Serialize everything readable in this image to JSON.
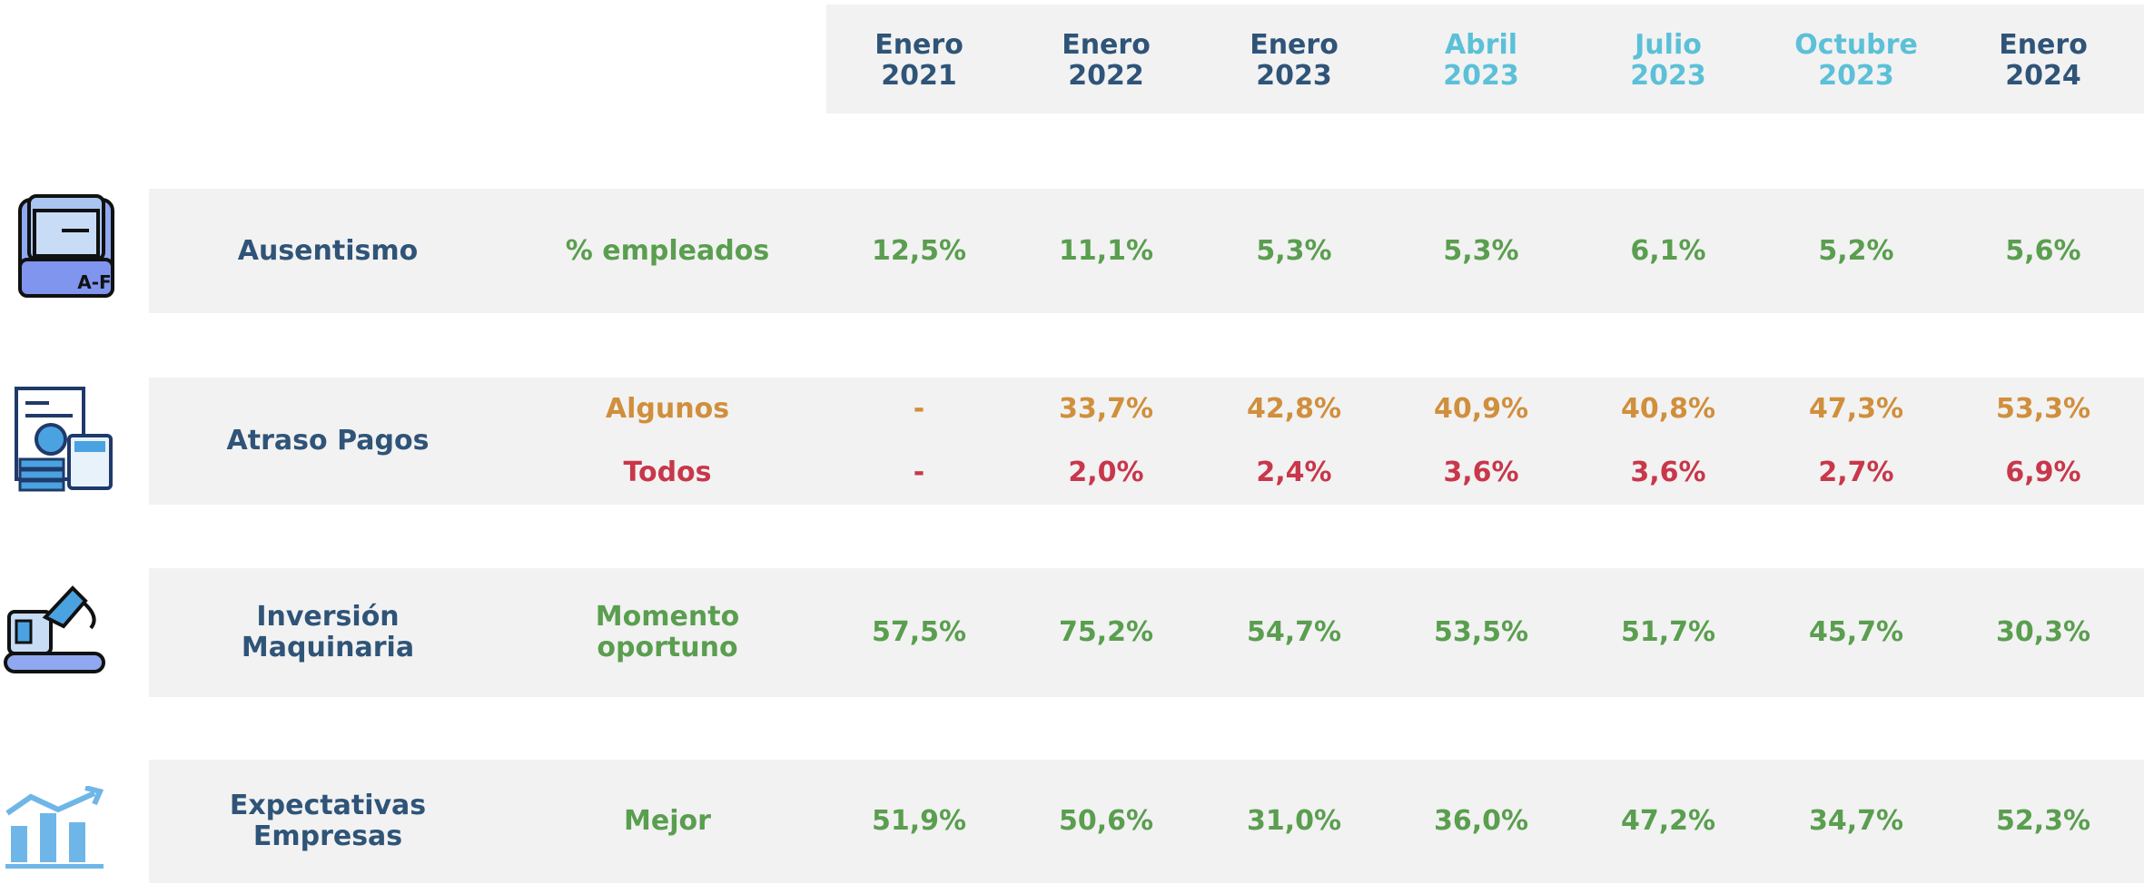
{
  "header": {
    "columns": [
      {
        "month": "Enero",
        "year": "2021",
        "color": "#2f5478"
      },
      {
        "month": "Enero",
        "year": "2022",
        "color": "#2f5478"
      },
      {
        "month": "Enero",
        "year": "2023",
        "color": "#2f5478"
      },
      {
        "month": "Abril",
        "year": "2023",
        "color": "#5bc0d8"
      },
      {
        "month": "Julio",
        "year": "2023",
        "color": "#5bc0d8"
      },
      {
        "month": "Octubre",
        "year": "2023",
        "color": "#5bc0d8"
      },
      {
        "month": "Enero",
        "year": "2024",
        "color": "#2f5478"
      }
    ]
  },
  "rows": [
    {
      "label": [
        "Ausentismo"
      ],
      "metrics": [
        {
          "label": [
            "% empleados"
          ],
          "color": "#5a9e4f",
          "values": [
            "12,5%",
            "11,1%",
            "5,3%",
            "5,3%",
            "6,1%",
            "5,2%",
            "5,6%"
          ]
        }
      ]
    },
    {
      "label": [
        "Atraso Pagos"
      ],
      "metrics": [
        {
          "label": [
            "Algunos"
          ],
          "color": "#d08f3c",
          "values": [
            "-",
            "33,7%",
            "42,8%",
            "40,9%",
            "40,8%",
            "47,3%",
            "53,3%"
          ]
        },
        {
          "label": [
            "Todos"
          ],
          "color": "#c8374a",
          "values": [
            "-",
            "2,0%",
            "2,4%",
            "3,6%",
            "3,6%",
            "2,7%",
            "6,9%"
          ]
        }
      ]
    },
    {
      "label": [
        "Inversión",
        "Maquinaria"
      ],
      "metrics": [
        {
          "label": [
            "Momento",
            "oportuno"
          ],
          "color": "#5a9e4f",
          "values": [
            "57,5%",
            "75,2%",
            "54,7%",
            "53,5%",
            "51,7%",
            "45,7%",
            "30,3%"
          ]
        }
      ]
    },
    {
      "label": [
        "Expectativas",
        "Empresas"
      ],
      "metrics": [
        {
          "label": [
            "Mejor"
          ],
          "color": "#5a9e4f",
          "values": [
            "51,9%",
            "50,6%",
            "31,0%",
            "36,0%",
            "47,2%",
            "34,7%",
            "52,3%"
          ]
        }
      ]
    }
  ]
}
